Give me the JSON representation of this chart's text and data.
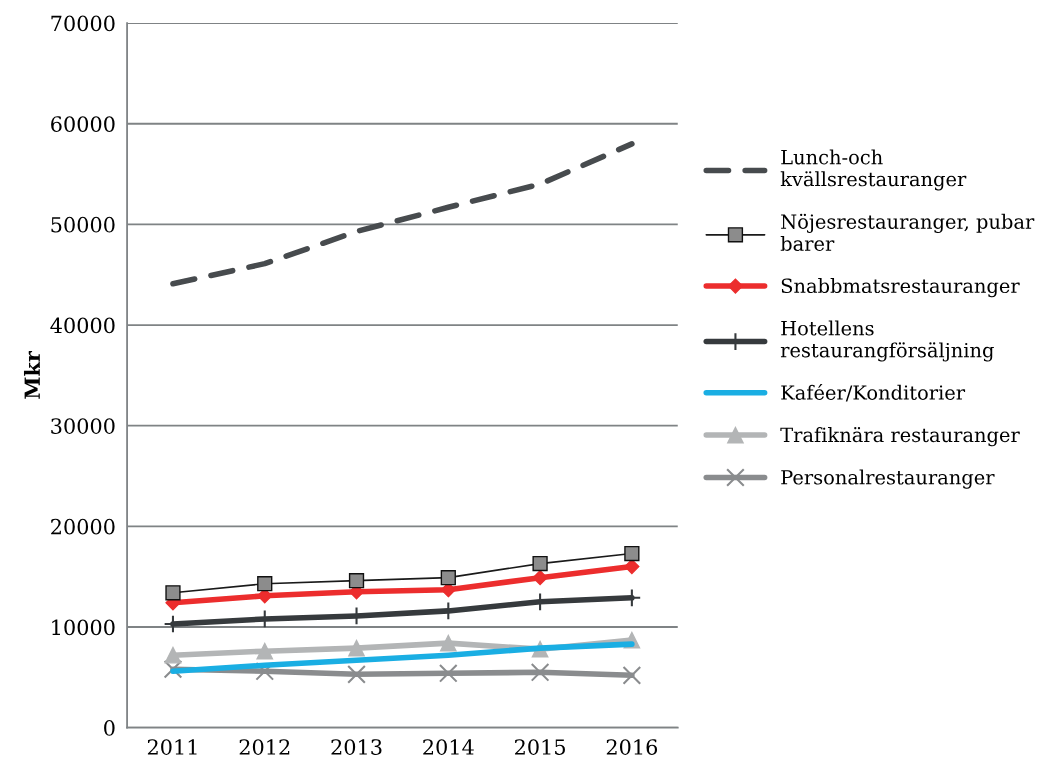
{
  "chart_data": {
    "type": "line",
    "ylabel": "Mkr",
    "categories": [
      "2011",
      "2012",
      "2013",
      "2014",
      "2015",
      "2016"
    ],
    "ylim": [
      0,
      70000
    ],
    "yticks": [
      0,
      10000,
      20000,
      30000,
      40000,
      50000,
      60000,
      70000
    ],
    "grid": "y",
    "legend": "right",
    "series": [
      {
        "name": "Lunch-och\nkvällsrestauranger",
        "color": "#474b4e",
        "line_style": "dashed",
        "marker": "none",
        "values": [
          44100,
          46100,
          49300,
          51700,
          54000,
          58000
        ]
      },
      {
        "name": "Nöjesrestauranger, pubar\nbarer",
        "color": "#1a1a1a",
        "marker": "square",
        "values": [
          13400,
          14300,
          14600,
          14900,
          16300,
          17300
        ]
      },
      {
        "name": "Snabbmatsrestauranger",
        "color": "#ec2d2d",
        "marker": "diamond",
        "values": [
          12400,
          13100,
          13500,
          13700,
          14900,
          16000
        ]
      },
      {
        "name": "Hotellens\nrestaurangförsäljning",
        "color": "#363a3d",
        "marker": "cross",
        "values": [
          10300,
          10800,
          11100,
          11600,
          12500,
          12900
        ]
      },
      {
        "name": "Kaféer/Konditorier",
        "color": "#1aaee3",
        "marker": "none",
        "values": [
          5600,
          6200,
          6700,
          7200,
          7900,
          8300
        ]
      },
      {
        "name": "Trafiknära restauranger",
        "color": "#b3b5b6",
        "marker": "triangle",
        "values": [
          7200,
          7600,
          7900,
          8400,
          7800,
          8700
        ]
      },
      {
        "name": "Personalrestauranger",
        "color": "#8a8c8e",
        "marker": "x",
        "values": [
          5800,
          5600,
          5300,
          5400,
          5500,
          5200
        ]
      }
    ]
  }
}
